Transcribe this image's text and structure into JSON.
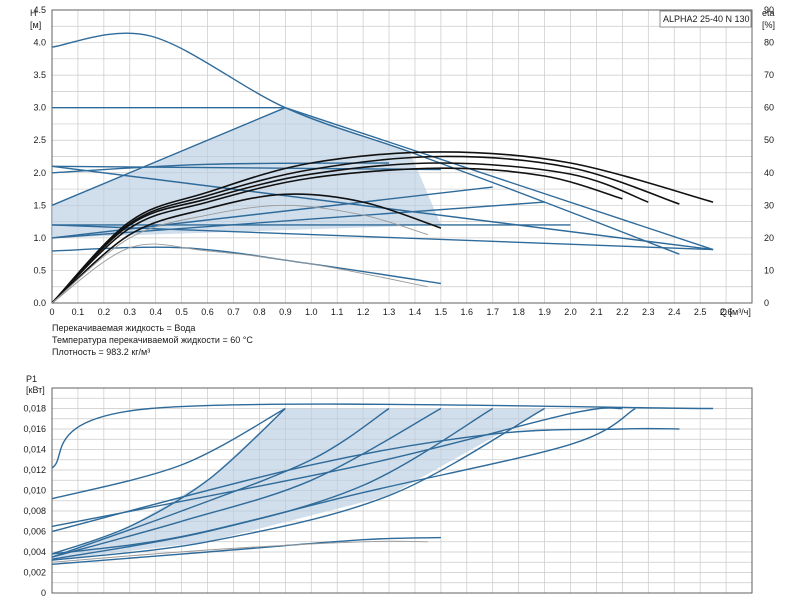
{
  "chart_data": [
    {
      "type": "line",
      "panel": "head",
      "title": "ALPHA2 25-40 N 130",
      "ylabel_top": "H",
      "ylabel_unit": "[м]",
      "y2label_top": "eta",
      "y2label_unit": "[%]",
      "xlabel": "Q [м³/ч]",
      "xlim": [
        0,
        2.7
      ],
      "ylim": [
        0,
        4.5
      ],
      "y2lim": [
        0,
        90
      ],
      "xticks": [
        "0",
        "0.1",
        "0.2",
        "0.3",
        "0.4",
        "0.5",
        "0.6",
        "0.7",
        "0.8",
        "0.9",
        "1.0",
        "1.1",
        "1.2",
        "1.3",
        "1.4",
        "1.5",
        "1.6",
        "1.7",
        "1.8",
        "1.9",
        "2.0",
        "2.1",
        "2.2",
        "2.3",
        "2.4",
        "2.5",
        "2.6"
      ],
      "yticks": [
        "0.0",
        "0.5",
        "1.0",
        "1.5",
        "2.0",
        "2.5",
        "3.0",
        "3.5",
        "4.0",
        "4.5"
      ],
      "y2ticks": [
        "0",
        "10",
        "20",
        "30",
        "40",
        "50",
        "60",
        "70",
        "80",
        "90"
      ],
      "grid": true,
      "notes": [
        "Перекачиваемая жидкость = Вода",
        "Температура перекачиваемой жидкости = 60 °C",
        "Плотность = 983.2 кг/м³"
      ],
      "shaded_area": [
        [
          0,
          1.0
        ],
        [
          0,
          1.5
        ],
        [
          0.9,
          3.0
        ],
        [
          1.38,
          2.32
        ],
        [
          1.5,
          1.2
        ],
        [
          0,
          1.0
        ]
      ],
      "series": [
        {
          "style": "blue",
          "values": [
            [
              0,
              3.93
            ],
            [
              0.38,
              4.1
            ],
            [
              0.9,
              3.0
            ],
            [
              1.38,
              2.32
            ],
            [
              1.9,
              1.55
            ],
            [
              2.42,
              0.75
            ]
          ]
        },
        {
          "style": "blue",
          "values": [
            [
              0,
              3.0
            ],
            [
              0.9,
              3.0
            ]
          ]
        },
        {
          "style": "blue",
          "values": [
            [
              0,
              1.5
            ],
            [
              0.9,
              3.0
            ]
          ]
        },
        {
          "style": "blue",
          "values": [
            [
              0.9,
              3.0
            ],
            [
              2.55,
              0.82
            ]
          ]
        },
        {
          "style": "blue",
          "values": [
            [
              0,
              2.1
            ],
            [
              1.5,
              2.05
            ]
          ]
        },
        {
          "style": "blue",
          "values": [
            [
              0,
              2.1
            ],
            [
              2.55,
              0.82
            ]
          ]
        },
        {
          "style": "blue",
          "values": [
            [
              0,
              2.0
            ],
            [
              0.6,
              2.13
            ],
            [
              1.3,
              2.15
            ]
          ]
        },
        {
          "style": "blue",
          "values": [
            [
              0,
              1.2
            ],
            [
              2.55,
              0.82
            ]
          ]
        },
        {
          "style": "blue",
          "values": [
            [
              0,
              1.2
            ],
            [
              2.0,
              1.2
            ]
          ]
        },
        {
          "style": "blue",
          "values": [
            [
              0,
              1.0
            ],
            [
              1.7,
              1.78
            ]
          ]
        },
        {
          "style": "blue",
          "values": [
            [
              0,
              1.0
            ],
            [
              1.9,
              1.55
            ]
          ]
        },
        {
          "style": "blue",
          "values": [
            [
              0,
              0.8
            ],
            [
              0.5,
              0.85
            ],
            [
              1.0,
              0.6
            ],
            [
              1.5,
              0.3
            ]
          ]
        },
        {
          "style": "black",
          "values": [
            [
              0,
              0
            ],
            [
              0.3,
              1.25
            ],
            [
              0.6,
              1.7
            ],
            [
              1.0,
              2.15
            ],
            [
              1.5,
              2.32
            ],
            [
              2.0,
              2.15
            ],
            [
              2.55,
              1.55
            ]
          ]
        },
        {
          "style": "black",
          "values": [
            [
              0,
              0
            ],
            [
              0.3,
              1.22
            ],
            [
              0.6,
              1.65
            ],
            [
              1.0,
              2.05
            ],
            [
              1.5,
              2.25
            ],
            [
              2.0,
              2.08
            ],
            [
              2.42,
              1.52
            ]
          ]
        },
        {
          "style": "black",
          "values": [
            [
              0,
              0
            ],
            [
              0.3,
              1.2
            ],
            [
              0.6,
              1.6
            ],
            [
              1.0,
              1.98
            ],
            [
              1.5,
              2.15
            ],
            [
              2.0,
              1.98
            ],
            [
              2.3,
              1.55
            ]
          ]
        },
        {
          "style": "black",
          "values": [
            [
              0,
              0
            ],
            [
              0.3,
              1.15
            ],
            [
              0.6,
              1.55
            ],
            [
              1.0,
              1.92
            ],
            [
              1.5,
              2.07
            ],
            [
              1.9,
              1.95
            ],
            [
              2.2,
              1.6
            ]
          ]
        },
        {
          "style": "black",
          "values": [
            [
              0,
              0
            ],
            [
              0.3,
              1.05
            ],
            [
              0.6,
              1.45
            ],
            [
              0.9,
              1.67
            ],
            [
              1.2,
              1.55
            ],
            [
              1.5,
              1.15
            ]
          ]
        },
        {
          "style": "gray",
          "values": [
            [
              0,
              0
            ],
            [
              0.3,
              1.0
            ],
            [
              0.6,
              1.35
            ],
            [
              0.9,
              1.5
            ],
            [
              1.2,
              1.35
            ],
            [
              1.45,
              1.05
            ]
          ]
        },
        {
          "style": "gray",
          "values": [
            [
              0,
              0
            ],
            [
              0.3,
              0.85
            ],
            [
              0.6,
              0.8
            ],
            [
              1.0,
              0.6
            ],
            [
              1.45,
              0.25
            ]
          ]
        }
      ]
    },
    {
      "type": "line",
      "panel": "power",
      "ylabel_top": "P1",
      "ylabel_unit": "[кВт]",
      "xlim": [
        0,
        2.7
      ],
      "ylim": [
        0,
        0.02
      ],
      "yticks": [
        "0",
        "0,002",
        "0,004",
        "0,006",
        "0,008",
        "0,010",
        "0,012",
        "0,014",
        "0,016",
        "0,018"
      ],
      "grid": true,
      "shaded_area": [
        [
          0,
          0.0035
        ],
        [
          0.9,
          0.018
        ],
        [
          1.9,
          0.018
        ],
        [
          0,
          0.0035
        ]
      ],
      "series": [
        {
          "style": "blue",
          "values": [
            [
              0,
              0.0122
            ],
            [
              0.38,
              0.018
            ],
            [
              2.55,
              0.018
            ]
          ]
        },
        {
          "style": "blue",
          "values": [
            [
              0,
              0.0092
            ],
            [
              0.5,
              0.0125
            ],
            [
              0.9,
              0.018
            ]
          ]
        },
        {
          "style": "blue",
          "values": [
            [
              0,
              0.0038
            ],
            [
              0.3,
              0.0065
            ],
            [
              0.6,
              0.011
            ],
            [
              0.9,
              0.018
            ]
          ]
        },
        {
          "style": "blue",
          "values": [
            [
              0,
              0.0035
            ],
            [
              0.5,
              0.008
            ],
            [
              1.0,
              0.013
            ],
            [
              1.3,
              0.018
            ]
          ]
        },
        {
          "style": "blue",
          "values": [
            [
              0,
              0.0035
            ],
            [
              0.5,
              0.007
            ],
            [
              1.0,
              0.011
            ],
            [
              1.5,
              0.018
            ]
          ]
        },
        {
          "style": "blue",
          "values": [
            [
              0,
              0.0033
            ],
            [
              0.6,
              0.006
            ],
            [
              1.2,
              0.0105
            ],
            [
              1.7,
              0.018
            ]
          ]
        },
        {
          "style": "blue",
          "values": [
            [
              0,
              0.0032
            ],
            [
              0.6,
              0.005
            ],
            [
              1.3,
              0.0095
            ],
            [
              1.9,
              0.018
            ]
          ]
        },
        {
          "style": "blue",
          "values": [
            [
              0,
              0.0038
            ],
            [
              0.5,
              0.0055
            ],
            [
              1.2,
              0.0098
            ],
            [
              2.0,
              0.0145
            ],
            [
              2.25,
              0.018
            ]
          ]
        },
        {
          "style": "blue",
          "values": [
            [
              0,
              0.006
            ],
            [
              1.0,
              0.0125
            ],
            [
              1.7,
              0.0155
            ],
            [
              2.2,
              0.016
            ],
            [
              2.42,
              0.016
            ]
          ]
        },
        {
          "style": "blue",
          "values": [
            [
              0,
              0.0065
            ],
            [
              1.2,
              0.0125
            ],
            [
              2.0,
              0.0175
            ],
            [
              2.2,
              0.018
            ]
          ]
        },
        {
          "style": "blue",
          "values": [
            [
              0,
              0.0028
            ],
            [
              0.6,
              0.004
            ],
            [
              1.2,
              0.0052
            ],
            [
              1.5,
              0.0054
            ]
          ]
        },
        {
          "style": "gray",
          "values": [
            [
              0,
              0.003
            ],
            [
              0.6,
              0.0042
            ],
            [
              1.2,
              0.005
            ],
            [
              1.45,
              0.005
            ]
          ]
        }
      ]
    }
  ],
  "colors": {
    "blue": "#2f6b9a",
    "black": "#111111",
    "gray": "#9a9a9a",
    "shade": "#b9cde0",
    "grid": "#c9c9c9"
  }
}
